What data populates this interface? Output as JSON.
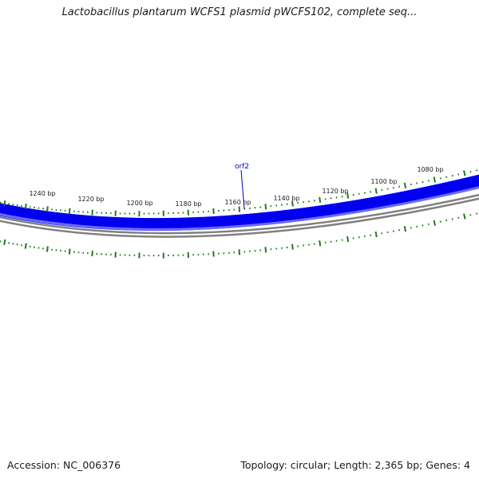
{
  "title": "Lactobacillus plantarum WCFS1 plasmid pWCFS102, complete seq...",
  "footer": {
    "accession": "Accession: NC_006376",
    "summary": "Topology: circular; Length: 2,365 bp; Genes: 4"
  },
  "map": {
    "ruler_labels": [
      "1240 bp",
      "1220 bp",
      "1200 bp",
      "1180 bp",
      "1160 bp",
      "1140 bp",
      "1120 bp",
      "1100 bp",
      "1080 bp"
    ],
    "feature_label": "orf2",
    "colors": {
      "gene_track": "#0000ee",
      "gene_track_light": "#6a6aff",
      "backbone": "#808080",
      "ticks": "#1f7a1f",
      "feature_label": "#0000cc"
    }
  }
}
